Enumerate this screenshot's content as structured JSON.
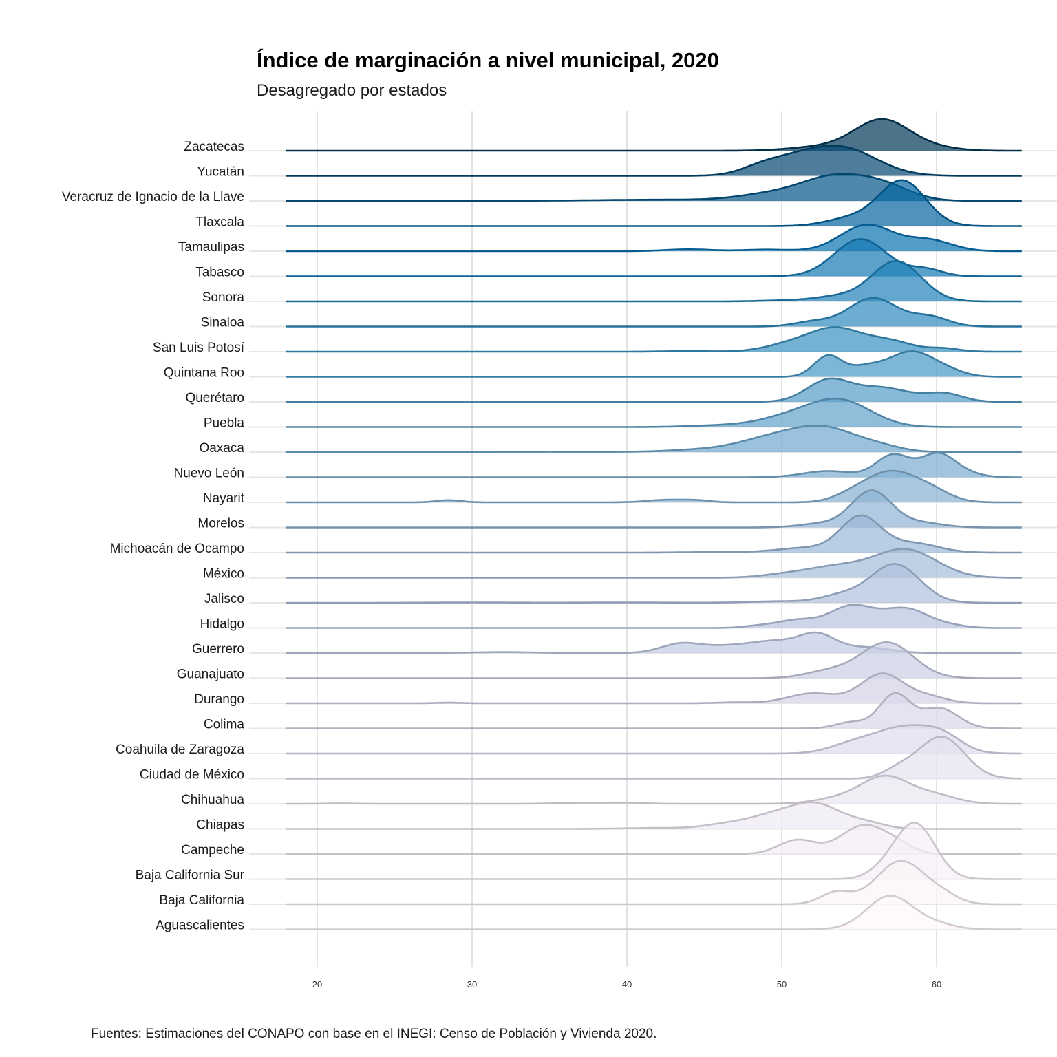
{
  "chart_data": {
    "type": "ridgeline",
    "title": "Índice de marginación a nivel municipal, 2020",
    "subtitle": "Desagregado por estados",
    "caption": "Fuentes: Estimaciones del CONAPO con base en el INEGI: Censo de Población y Vivienda 2020.",
    "xlabel": "",
    "ylabel": "",
    "xlim": [
      18,
      65.5
    ],
    "xticks": [
      "20",
      "30",
      "40",
      "50",
      "60"
    ],
    "grid": true,
    "legend": "none",
    "color_low": "#fff7fb",
    "color_high": "#023858",
    "series": [
      {
        "name": "Zacatecas",
        "peaks": [
          [
            56.5,
            1.0,
            1.8
          ],
          [
            52.5,
            0.12,
            2.0
          ],
          [
            60,
            0.08,
            1.5
          ]
        ]
      },
      {
        "name": "Yucatán",
        "peaks": [
          [
            54.0,
            0.85,
            2.2
          ],
          [
            50.5,
            0.45,
            2.0
          ],
          [
            48.5,
            0.12,
            1.2
          ]
        ]
      },
      {
        "name": "Veracruz de Ignacio de la Llave",
        "peaks": [
          [
            53.3,
            0.7,
            2.0
          ],
          [
            56.5,
            0.48,
            1.8
          ],
          [
            49.5,
            0.22,
            2.2
          ],
          [
            42.5,
            0.04,
            4.5
          ]
        ]
      },
      {
        "name": "Tlaxcala",
        "peaks": [
          [
            57.8,
            1.45,
            1.5
          ],
          [
            54.5,
            0.25,
            1.6
          ]
        ]
      },
      {
        "name": "Tamaulipas",
        "peaks": [
          [
            55.5,
            0.85,
            1.7
          ],
          [
            59.5,
            0.35,
            1.5
          ],
          [
            44,
            0.06,
            1.5
          ],
          [
            49,
            0.05,
            1.5
          ]
        ]
      },
      {
        "name": "Tabasco",
        "peaks": [
          [
            55.1,
            1.2,
            1.7
          ],
          [
            59.3,
            0.22,
            1.1
          ]
        ]
      },
      {
        "name": "Sonora",
        "peaks": [
          [
            57.4,
            1.3,
            1.6
          ],
          [
            53.5,
            0.15,
            1.5
          ],
          [
            50,
            0.03,
            1.5
          ]
        ]
      },
      {
        "name": "Sinaloa",
        "peaks": [
          [
            55.9,
            0.92,
            1.6
          ],
          [
            59.6,
            0.3,
            1.2
          ],
          [
            52,
            0.15,
            1.2
          ]
        ]
      },
      {
        "name": "San Luis Potosí",
        "peaks": [
          [
            53.5,
            0.73,
            1.7
          ],
          [
            57,
            0.32,
            1.5
          ],
          [
            50.5,
            0.22,
            1.6
          ],
          [
            60.5,
            0.1,
            1.0
          ],
          [
            44,
            0.02,
            1.5
          ]
        ]
      },
      {
        "name": "Quintana Roo",
        "peaks": [
          [
            58.4,
            0.82,
            1.6
          ],
          [
            53.0,
            0.68,
            0.9
          ],
          [
            55.3,
            0.25,
            1.0
          ],
          [
            61,
            0.08,
            1.0
          ]
        ]
      },
      {
        "name": "Querétaro",
        "peaks": [
          [
            53.0,
            0.68,
            1.4
          ],
          [
            56.5,
            0.45,
            1.8
          ],
          [
            60.5,
            0.26,
            1.2
          ]
        ]
      },
      {
        "name": "Puebla",
        "peaks": [
          [
            53.8,
            0.83,
            2.0
          ],
          [
            50.5,
            0.3,
            2.0
          ],
          [
            46,
            0.05,
            2.0
          ]
        ]
      },
      {
        "name": "Oaxaca",
        "peaks": [
          [
            52.7,
            0.78,
            2.2
          ],
          [
            49.0,
            0.35,
            2.0
          ],
          [
            45.0,
            0.08,
            2.2
          ],
          [
            56.5,
            0.12,
            1.4
          ],
          [
            35,
            0.01,
            5
          ]
        ]
      },
      {
        "name": "Nuevo León",
        "peaks": [
          [
            57.2,
            0.72,
            1.1
          ],
          [
            60.1,
            0.75,
            1.1
          ],
          [
            53,
            0.2,
            1.6
          ],
          [
            62,
            0.1,
            1.0
          ]
        ]
      },
      {
        "name": "Nayarit",
        "peaks": [
          [
            57.0,
            0.95,
            1.6
          ],
          [
            59.6,
            0.35,
            1.3
          ],
          [
            54.5,
            0.2,
            1.2
          ],
          [
            28.5,
            0.07,
            0.8
          ],
          [
            42.5,
            0.08,
            1.2
          ],
          [
            44.5,
            0.06,
            0.9
          ]
        ]
      },
      {
        "name": "Morelos",
        "peaks": [
          [
            55.8,
            1.18,
            1.3
          ],
          [
            59.0,
            0.15,
            1.4
          ],
          [
            52.5,
            0.12,
            1.4
          ]
        ]
      },
      {
        "name": "Michoacán de Ocampo",
        "peaks": [
          [
            55.1,
            1.15,
            1.3
          ],
          [
            58.5,
            0.3,
            1.6
          ],
          [
            51.5,
            0.15,
            1.8
          ],
          [
            46,
            0.02,
            2.0
          ]
        ]
      },
      {
        "name": "México",
        "peaks": [
          [
            58.0,
            0.9,
            2.0
          ],
          [
            53.5,
            0.35,
            2.0
          ],
          [
            50,
            0.08,
            1.5
          ]
        ]
      },
      {
        "name": "Jalisco",
        "peaks": [
          [
            57.3,
            1.25,
            1.6
          ],
          [
            53.8,
            0.22,
            1.3
          ],
          [
            50,
            0.05,
            2.0
          ],
          [
            30,
            0.01,
            3.0
          ],
          [
            40,
            0.01,
            3.0
          ]
        ]
      },
      {
        "name": "Hidalgo",
        "peaks": [
          [
            54.5,
            0.7,
            1.4
          ],
          [
            58.0,
            0.62,
            1.5
          ],
          [
            51.0,
            0.25,
            1.3
          ],
          [
            48.5,
            0.06,
            1.0
          ],
          [
            61,
            0.06,
            1.0
          ]
        ]
      },
      {
        "name": "Guerrero",
        "peaks": [
          [
            52.3,
            0.58,
            1.2
          ],
          [
            49.5,
            0.35,
            1.5
          ],
          [
            43.5,
            0.3,
            1.3
          ],
          [
            46.5,
            0.2,
            1.5
          ],
          [
            55.5,
            0.18,
            1.5
          ],
          [
            32,
            0.03,
            2.0
          ]
        ]
      },
      {
        "name": "Guanajuato",
        "peaks": [
          [
            56.8,
            1.15,
            1.7
          ],
          [
            53.0,
            0.22,
            1.5
          ]
        ]
      },
      {
        "name": "Durango",
        "peaks": [
          [
            56.5,
            0.95,
            1.4
          ],
          [
            52.0,
            0.32,
            1.6
          ],
          [
            59.5,
            0.2,
            1.2
          ],
          [
            28.5,
            0.02,
            0.8
          ],
          [
            47,
            0.03,
            1.2
          ]
        ]
      },
      {
        "name": "Colima",
        "peaks": [
          [
            57.3,
            1.1,
            1.0
          ],
          [
            60.2,
            0.65,
            1.2
          ],
          [
            54.5,
            0.2,
            1.0
          ]
        ]
      },
      {
        "name": "Coahuila de Zaragoza",
        "peaks": [
          [
            58.0,
            0.85,
            2.0
          ],
          [
            54.5,
            0.25,
            1.5
          ],
          [
            60.5,
            0.35,
            1.2
          ]
        ]
      },
      {
        "name": "Ciudad de México",
        "peaks": [
          [
            60.3,
            1.35,
            1.5
          ],
          [
            57.5,
            0.25,
            1.0
          ]
        ]
      },
      {
        "name": "Chihuahua",
        "peaks": [
          [
            56.7,
            0.88,
            1.6
          ],
          [
            60,
            0.25,
            1.4
          ],
          [
            53.5,
            0.15,
            1.5
          ],
          [
            37,
            0.03,
            1.5
          ],
          [
            40,
            0.03,
            1.2
          ],
          [
            21.5,
            0.01,
            1.0
          ]
        ]
      },
      {
        "name": "Chiapas",
        "peaks": [
          [
            52.3,
            0.75,
            1.6
          ],
          [
            49.5,
            0.4,
            1.6
          ],
          [
            46.5,
            0.15,
            1.5
          ],
          [
            55.5,
            0.18,
            1.2
          ],
          [
            42,
            0.03,
            2.0
          ]
        ]
      },
      {
        "name": "Campeche",
        "peaks": [
          [
            55.3,
            0.92,
            1.5
          ],
          [
            51.0,
            0.45,
            1.2
          ],
          [
            57.5,
            0.2,
            1.0
          ]
        ]
      },
      {
        "name": "Baja California Sur",
        "peaks": [
          [
            58.6,
            1.8,
            1.3
          ],
          [
            56.5,
            0.2,
            1.0
          ]
        ]
      },
      {
        "name": "Baja California",
        "peaks": [
          [
            57.7,
            1.4,
            1.6
          ],
          [
            53.5,
            0.38,
            1.0
          ],
          [
            60.5,
            0.2,
            1.0
          ]
        ]
      },
      {
        "name": "Aguascalientes",
        "peaks": [
          [
            57.0,
            1.08,
            1.5
          ],
          [
            60,
            0.15,
            1.2
          ]
        ]
      }
    ]
  }
}
